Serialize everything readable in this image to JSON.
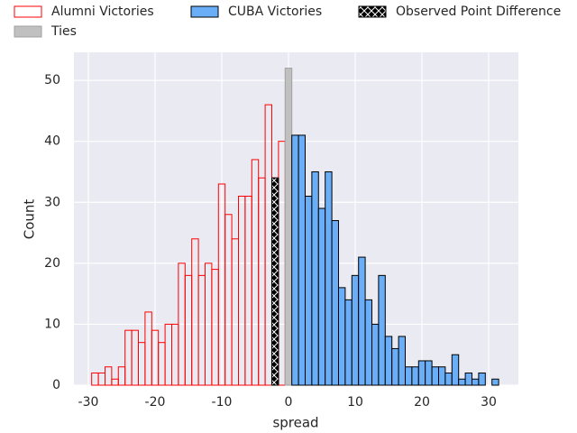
{
  "chart_data": {
    "type": "histogram",
    "xlabel": "spread",
    "ylabel": "Count",
    "xlim": [
      -32.16,
      34.46
    ],
    "ylim": [
      0,
      54.6
    ],
    "xticks": [
      -30,
      -20,
      -10,
      0,
      10,
      20,
      30
    ],
    "yticks": [
      0,
      10,
      20,
      30,
      40,
      50
    ],
    "grid": true,
    "legend": "top",
    "series": [
      {
        "name": "Alumni Victories",
        "color": "none",
        "edgecolor": "#ff0000",
        "bins": [
          -29.5,
          -28.5,
          -27.5,
          -26.5,
          -25.5,
          -24.5,
          -23.5,
          -22.5,
          -21.5,
          -20.5,
          -19.5,
          -18.5,
          -17.5,
          -16.5,
          -15.5,
          -14.5,
          -13.5,
          -12.5,
          -11.5,
          -10.5,
          -9.5,
          -8.5,
          -7.5,
          -6.5,
          -5.5,
          -4.5,
          -3.5,
          -2.5,
          -1.5,
          -0.5
        ],
        "values": [
          2,
          2,
          3,
          1,
          3,
          9,
          9,
          7,
          12,
          9,
          7,
          10,
          10,
          20,
          18,
          24,
          18,
          20,
          19,
          33,
          28,
          24,
          31,
          31,
          37,
          34,
          46,
          34,
          40
        ]
      },
      {
        "name": "Ties",
        "color": "#c0c0c0",
        "edgecolor": "#a0a0a0",
        "bins": [
          -0.5,
          0.5
        ],
        "values": [
          52
        ]
      },
      {
        "name": "CUBA Victories",
        "color": "#6aaef7",
        "edgecolor": "#000000",
        "bins": [
          0.5,
          1.5,
          2.5,
          3.5,
          4.5,
          5.5,
          6.5,
          7.5,
          8.5,
          9.5,
          10.5,
          11.5,
          12.5,
          13.5,
          14.5,
          15.5,
          16.5,
          17.5,
          18.5,
          19.5,
          20.5,
          21.5,
          22.5,
          23.5,
          24.5,
          25.5,
          26.5,
          27.5,
          28.5,
          29.5,
          30.5,
          31.5
        ],
        "values": [
          41,
          41,
          31,
          35,
          29,
          35,
          27,
          16,
          14,
          18,
          21,
          14,
          10,
          18,
          8,
          6,
          8,
          3,
          3,
          4,
          4,
          3,
          3,
          2,
          5,
          1,
          2,
          1,
          2,
          0,
          1
        ]
      },
      {
        "name": "Observed Point Difference",
        "color": "#000000",
        "edgecolor": "#000000",
        "hatch": true,
        "bins": [
          -2.5,
          -1.5
        ],
        "values": [
          34
        ]
      }
    ]
  }
}
